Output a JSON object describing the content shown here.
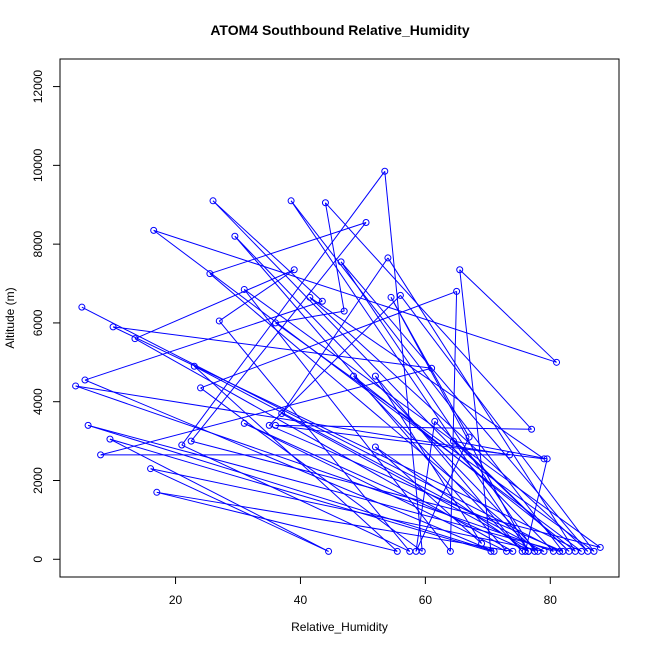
{
  "chart_data": {
    "type": "scatter",
    "title": "ATOM4 Southbound Relative_Humidity",
    "xlabel": "Relative_Humidity",
    "ylabel": "Altitude (m)",
    "xlim": [
      1.5,
      91
    ],
    "ylim": [
      -450,
      12700
    ],
    "xticks": [
      20,
      40,
      60,
      80
    ],
    "yticks": [
      0,
      2000,
      4000,
      6000,
      8000,
      10000,
      12000
    ],
    "grid": false,
    "legend": "none",
    "color": "#0000ff",
    "series": [
      {
        "connected": true,
        "points": [
          {
            "x": 5.0,
            "y": 6400
          },
          {
            "x": 81.5,
            "y": 200
          },
          {
            "x": 6.0,
            "y": 3400
          },
          {
            "x": 71.0,
            "y": 200
          },
          {
            "x": 5.5,
            "y": 4550
          },
          {
            "x": 43.5,
            "y": 6550
          },
          {
            "x": 26.0,
            "y": 9100
          },
          {
            "x": 80.5,
            "y": 200
          },
          {
            "x": 4.0,
            "y": 4400
          },
          {
            "x": 73.5,
            "y": 2650
          },
          {
            "x": 8.0,
            "y": 2650
          },
          {
            "x": 61.0,
            "y": 4850
          },
          {
            "x": 10.0,
            "y": 5900
          },
          {
            "x": 85.0,
            "y": 200
          },
          {
            "x": 16.5,
            "y": 8350
          },
          {
            "x": 81.0,
            "y": 5000
          },
          {
            "x": 65.5,
            "y": 7350
          },
          {
            "x": 70.5,
            "y": 200
          },
          {
            "x": 9.5,
            "y": 3050
          },
          {
            "x": 44.5,
            "y": 200
          },
          {
            "x": 16.0,
            "y": 2300
          },
          {
            "x": 79.0,
            "y": 200
          },
          {
            "x": 23.0,
            "y": 4900
          },
          {
            "x": 55.5,
            "y": 200
          },
          {
            "x": 17.0,
            "y": 1700
          },
          {
            "x": 74.0,
            "y": 200
          },
          {
            "x": 13.5,
            "y": 5600
          },
          {
            "x": 39.0,
            "y": 7350
          },
          {
            "x": 27.0,
            "y": 6050
          },
          {
            "x": 57.5,
            "y": 200
          },
          {
            "x": 21.0,
            "y": 2900
          },
          {
            "x": 53.5,
            "y": 9850
          },
          {
            "x": 59.5,
            "y": 200
          },
          {
            "x": 24.0,
            "y": 4350
          },
          {
            "x": 65.0,
            "y": 6800
          },
          {
            "x": 64.0,
            "y": 200
          },
          {
            "x": 31.0,
            "y": 6850
          },
          {
            "x": 88.0,
            "y": 300
          },
          {
            "x": 22.5,
            "y": 3000
          },
          {
            "x": 50.5,
            "y": 8550
          },
          {
            "x": 25.5,
            "y": 7250
          },
          {
            "x": 78.0,
            "y": 200
          },
          {
            "x": 29.5,
            "y": 8200
          },
          {
            "x": 73.0,
            "y": 200
          },
          {
            "x": 31.0,
            "y": 3450
          },
          {
            "x": 76.5,
            "y": 200
          },
          {
            "x": 38.5,
            "y": 9100
          },
          {
            "x": 82.0,
            "y": 200
          },
          {
            "x": 35.0,
            "y": 3400
          },
          {
            "x": 56.0,
            "y": 6700
          },
          {
            "x": 87.0,
            "y": 200
          },
          {
            "x": 36.0,
            "y": 6000
          },
          {
            "x": 47.0,
            "y": 6300
          },
          {
            "x": 44.0,
            "y": 9050
          },
          {
            "x": 77.0,
            "y": 3300
          },
          {
            "x": 36.0,
            "y": 3400
          },
          {
            "x": 79.0,
            "y": 2550
          },
          {
            "x": 41.5,
            "y": 6650
          },
          {
            "x": 86.0,
            "y": 200
          },
          {
            "x": 46.5,
            "y": 7550
          },
          {
            "x": 77.5,
            "y": 200
          },
          {
            "x": 37.0,
            "y": 3700
          },
          {
            "x": 54.0,
            "y": 7650
          },
          {
            "x": 84.0,
            "y": 200
          },
          {
            "x": 48.5,
            "y": 4650
          },
          {
            "x": 75.5,
            "y": 200
          },
          {
            "x": 52.0,
            "y": 4650
          },
          {
            "x": 69.0,
            "y": 400
          },
          {
            "x": 52.0,
            "y": 2850
          },
          {
            "x": 76.5,
            "y": 200
          },
          {
            "x": 54.5,
            "y": 6650
          },
          {
            "x": 67.0,
            "y": 3100
          },
          {
            "x": 58.5,
            "y": 200
          },
          {
            "x": 61.5,
            "y": 3500
          },
          {
            "x": 83.0,
            "y": 200
          },
          {
            "x": 64.5,
            "y": 3000
          },
          {
            "x": 79.5,
            "y": 2550
          },
          {
            "x": 76.0,
            "y": 200
          }
        ]
      }
    ]
  }
}
